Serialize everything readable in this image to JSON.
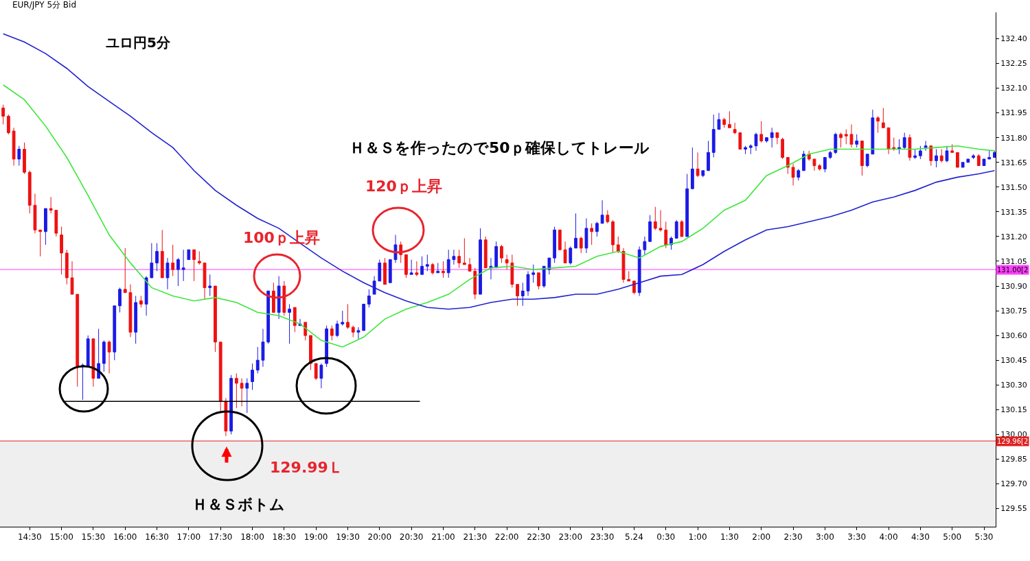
{
  "chart_data": {
    "type": "candlestick",
    "title": "ユロ円5分",
    "subtitle": "EUR/JPY 5分 Bid",
    "xlim": [
      "--05-23T14:02",
      "--05-24T05:41"
    ],
    "xticks": [
      {
        "value": "--05-23T14:30",
        "label": "14:30"
      },
      {
        "value": "--05-23T15:00",
        "label": "15:00"
      },
      {
        "value": "--05-23T15:30",
        "label": "15:30"
      },
      {
        "value": "--05-23T16:00",
        "label": "16:00"
      },
      {
        "value": "--05-23T16:30",
        "label": "16:30"
      },
      {
        "value": "--05-23T17:00",
        "label": "17:00"
      },
      {
        "value": "--05-23T17:30",
        "label": "17:30"
      },
      {
        "value": "--05-23T18:00",
        "label": "18:00"
      },
      {
        "value": "--05-23T18:30",
        "label": "18:30"
      },
      {
        "value": "--05-23T19:00",
        "label": "19:00"
      },
      {
        "value": "--05-23T19:30",
        "label": "19:30"
      },
      {
        "value": "--05-23T20:00",
        "label": "20:00"
      },
      {
        "value": "--05-23T20:30",
        "label": "20:30"
      },
      {
        "value": "--05-23T21:00",
        "label": "21:00"
      },
      {
        "value": "--05-23T21:30",
        "label": "21:30"
      },
      {
        "value": "--05-23T22:00",
        "label": "22:00"
      },
      {
        "value": "--05-23T22:30",
        "label": "22:30"
      },
      {
        "value": "--05-23T23:00",
        "label": "23:00"
      },
      {
        "value": "--05-23T23:30",
        "label": "23:30"
      },
      {
        "value": "--05-24T00:00",
        "label": "5.24"
      },
      {
        "value": "--05-24T00:30",
        "label": "0:30"
      },
      {
        "value": "--05-24T01:00",
        "label": "1:00"
      },
      {
        "value": "--05-24T01:30",
        "label": "1:30"
      },
      {
        "value": "--05-24T02:00",
        "label": "2:00"
      },
      {
        "value": "--05-24T02:30",
        "label": "2:30"
      },
      {
        "value": "--05-24T03:00",
        "label": "3:00"
      },
      {
        "value": "--05-24T03:30",
        "label": "3:30"
      },
      {
        "value": "--05-24T04:00",
        "label": "4:00"
      },
      {
        "value": "--05-24T04:30",
        "label": "4:30"
      },
      {
        "value": "--05-24T05:00",
        "label": "5:00"
      },
      {
        "value": "--05-24T05:30",
        "label": "5:30"
      }
    ],
    "ylim": [
      129.44,
      132.56
    ],
    "yticks": [
      {
        "value": 129.55,
        "label": "129.55"
      },
      {
        "value": 129.7,
        "label": "129.70"
      },
      {
        "value": 129.85,
        "label": "129.85"
      },
      {
        "value": 130.0,
        "label": "130.00"
      },
      {
        "value": 130.15,
        "label": "130.15"
      },
      {
        "value": 130.3,
        "label": "130.30"
      },
      {
        "value": 130.45,
        "label": "130.45"
      },
      {
        "value": 130.6,
        "label": "130.60"
      },
      {
        "value": 130.75,
        "label": "130.75"
      },
      {
        "value": 130.9,
        "label": "130.90"
      },
      {
        "value": 131.05,
        "label": "131.05"
      },
      {
        "value": 131.2,
        "label": "131.20"
      },
      {
        "value": 131.35,
        "label": "131.35"
      },
      {
        "value": 131.5,
        "label": "131.50"
      },
      {
        "value": 131.65,
        "label": "131.65"
      },
      {
        "value": 131.8,
        "label": "131.80"
      },
      {
        "value": 131.95,
        "label": "131.95"
      },
      {
        "value": 132.1,
        "label": "132.10"
      },
      {
        "value": 132.25,
        "label": "132.25"
      },
      {
        "value": 132.4,
        "label": "132.40"
      }
    ],
    "series": [
      {
        "type": "line",
        "color": "#3ce63c",
        "x": [
          "--05-23T14:05",
          "--05-23T14:25",
          "--05-23T14:45",
          "--05-23T15:05",
          "--05-23T15:25",
          "--05-23T15:45",
          "--05-23T16:05",
          "--05-23T16:25",
          "--05-23T16:45",
          "--05-23T17:05",
          "--05-23T17:25",
          "--05-23T17:45",
          "--05-23T18:05",
          "--05-23T18:25",
          "--05-23T18:45",
          "--05-23T19:05",
          "--05-23T19:25",
          "--05-23T19:45",
          "--05-23T20:05",
          "--05-23T20:25",
          "--05-23T20:45",
          "--05-23T21:05",
          "--05-23T21:25",
          "--05-23T21:45",
          "--05-23T22:05",
          "--05-23T22:25",
          "--05-23T22:45",
          "--05-23T23:05",
          "--05-23T23:25",
          "--05-23T23:45",
          "--05-24T00:05",
          "--05-24T00:25",
          "--05-24T00:45",
          "--05-24T01:05",
          "--05-24T01:25",
          "--05-24T01:45",
          "--05-24T02:05",
          "--05-24T02:25",
          "--05-24T02:45",
          "--05-24T03:05",
          "--05-24T03:25",
          "--05-24T03:45",
          "--05-24T04:05",
          "--05-24T04:25",
          "--05-24T04:45",
          "--05-24T05:05",
          "--05-24T05:25",
          "--05-24T05:40"
        ],
        "values": [
          132.12,
          132.03,
          131.87,
          131.68,
          131.45,
          131.21,
          131.04,
          130.89,
          130.84,
          130.81,
          130.83,
          130.8,
          130.74,
          130.72,
          130.67,
          130.57,
          130.53,
          130.59,
          130.7,
          130.76,
          130.8,
          130.85,
          130.94,
          131.01,
          131.02,
          131.0,
          131.01,
          131.02,
          131.08,
          131.11,
          131.07,
          131.14,
          131.17,
          131.25,
          131.36,
          131.42,
          131.57,
          131.63,
          131.7,
          131.73,
          131.73,
          131.73,
          131.73,
          131.73,
          131.74,
          131.75,
          131.73,
          131.72
        ]
      },
      {
        "type": "line",
        "color": "#2020d0",
        "x": [
          "--05-23T14:05",
          "--05-23T14:25",
          "--05-23T14:45",
          "--05-23T15:05",
          "--05-23T15:25",
          "--05-23T15:45",
          "--05-23T16:05",
          "--05-23T16:25",
          "--05-23T16:45",
          "--05-23T17:05",
          "--05-23T17:25",
          "--05-23T17:45",
          "--05-23T18:05",
          "--05-23T18:25",
          "--05-23T18:45",
          "--05-23T19:05",
          "--05-23T19:25",
          "--05-23T19:45",
          "--05-23T20:05",
          "--05-23T20:25",
          "--05-23T20:45",
          "--05-23T21:05",
          "--05-23T21:25",
          "--05-23T21:45",
          "--05-23T22:05",
          "--05-23T22:25",
          "--05-23T22:45",
          "--05-23T23:05",
          "--05-23T23:25",
          "--05-23T23:45",
          "--05-24T00:05",
          "--05-24T00:25",
          "--05-24T00:45",
          "--05-24T01:05",
          "--05-24T01:25",
          "--05-24T01:45",
          "--05-24T02:05",
          "--05-24T02:25",
          "--05-24T02:45",
          "--05-24T03:05",
          "--05-24T03:25",
          "--05-24T03:45",
          "--05-24T04:05",
          "--05-24T04:25",
          "--05-24T04:45",
          "--05-24T05:05",
          "--05-24T05:25",
          "--05-24T05:40"
        ],
        "values": [
          132.43,
          132.38,
          132.31,
          132.22,
          132.11,
          132.02,
          131.93,
          131.83,
          131.74,
          131.6,
          131.48,
          131.39,
          131.31,
          131.25,
          131.16,
          131.07,
          130.99,
          130.92,
          130.86,
          130.81,
          130.77,
          130.76,
          130.77,
          130.8,
          130.82,
          130.82,
          130.83,
          130.85,
          130.85,
          130.88,
          130.92,
          130.96,
          130.97,
          131.03,
          131.11,
          131.18,
          131.24,
          131.26,
          131.29,
          131.32,
          131.36,
          131.41,
          131.44,
          131.48,
          131.53,
          131.56,
          131.58,
          131.6
        ]
      },
      {
        "type": "line",
        "color": "#000000",
        "x": [
          "--05-23T15:02",
          "--05-23T20:38"
        ],
        "values": [
          130.2,
          130.2
        ]
      },
      {
        "color": "#1a1ae6",
        "x": [
          "--05-23T14:20",
          "--05-23T14:45",
          "--05-23T15:20",
          "--05-23T15:25",
          "--05-23T15:35",
          "--05-23T15:40",
          "--05-23T15:50",
          "--05-23T15:55",
          "--05-23T16:10",
          "--05-23T16:20",
          "--05-23T16:25",
          "--05-23T16:30",
          "--05-23T16:40",
          "--05-23T16:50",
          "--05-23T16:55",
          "--05-23T17:00",
          "--05-23T17:20",
          "--05-23T17:40",
          "--05-23T17:55",
          "--05-23T18:00",
          "--05-23T18:05",
          "--05-23T18:10",
          "--05-23T18:15",
          "--05-23T18:25",
          "--05-23T18:35",
          "--05-23T18:45",
          "--05-23T19:05",
          "--05-23T19:10",
          "--05-23T19:20",
          "--05-23T19:25",
          "--05-23T19:40",
          "--05-23T19:45",
          "--05-23T19:50",
          "--05-23T19:55",
          "--05-23T20:00",
          "--05-23T20:10",
          "--05-23T20:15",
          "--05-23T20:30",
          "--05-23T20:40",
          "--05-23T20:45",
          "--05-23T20:55",
          "--05-23T21:05",
          "--05-23T21:10",
          "--05-23T21:35",
          "--05-23T21:45",
          "--05-23T21:50",
          "--05-23T22:15",
          "--05-23T22:20",
          "--05-23T22:25",
          "--05-23T22:35",
          "--05-23T22:40",
          "--05-23T22:45",
          "--05-23T23:00",
          "--05-23T23:05",
          "--05-23T23:15",
          "--05-23T23:25",
          "--05-23T23:30",
          "--05-24T00:05",
          "--05-24T00:10",
          "--05-24T00:15",
          "--05-24T00:35",
          "--05-24T00:40",
          "--05-24T00:50",
          "--05-24T00:55",
          "--05-24T01:05",
          "--05-24T01:10",
          "--05-24T01:15",
          "--05-24T01:20",
          "--05-24T01:45",
          "--05-24T01:50",
          "--05-24T01:55",
          "--05-24T02:05",
          "--05-24T02:10",
          "--05-24T02:35",
          "--05-24T02:40",
          "--05-24T03:00",
          "--05-24T03:05",
          "--05-24T03:10",
          "--05-24T03:30",
          "--05-24T03:40",
          "--05-24T03:45",
          "--05-24T04:10",
          "--05-24T04:15",
          "--05-24T04:25",
          "--05-24T04:30",
          "--05-24T04:35",
          "--05-24T04:45",
          "--05-24T04:55",
          "--05-24T05:10",
          "--05-24T05:15",
          "--05-24T05:20",
          "--05-24T05:30",
          "--05-24T05:35",
          "--05-24T05:40"
        ],
        "ohlc": [
          [
            131.67,
            131.75,
            131.63,
            131.73
          ],
          [
            131.23,
            131.37,
            131.15,
            131.37
          ],
          [
            130.41,
            130.43,
            130.21,
            130.42
          ],
          [
            130.41,
            130.6,
            130.41,
            130.58
          ],
          [
            130.34,
            130.64,
            130.34,
            130.43
          ],
          [
            130.43,
            130.57,
            130.38,
            130.56
          ],
          [
            130.5,
            130.78,
            130.45,
            130.78
          ],
          [
            130.78,
            130.89,
            130.74,
            130.88
          ],
          [
            130.62,
            130.84,
            130.55,
            130.8
          ],
          [
            130.79,
            130.96,
            130.72,
            130.95
          ],
          [
            130.95,
            131.16,
            130.95,
            131.04
          ],
          [
            131.04,
            131.16,
            130.99,
            131.11
          ],
          [
            130.95,
            131.07,
            130.88,
            131.04
          ],
          [
            131.0,
            131.07,
            130.9,
            131.06
          ],
          [
            131.0,
            131.12,
            130.93,
            131.01
          ],
          [
            131.06,
            131.12,
            131.06,
            131.12
          ],
          [
            130.89,
            130.97,
            130.84,
            130.9
          ],
          [
            130.02,
            130.36,
            130.0,
            130.34
          ],
          [
            130.28,
            130.34,
            130.13,
            130.31
          ],
          [
            130.32,
            130.43,
            130.27,
            130.39
          ],
          [
            130.39,
            130.53,
            130.37,
            130.45
          ],
          [
            130.45,
            130.64,
            130.41,
            130.56
          ],
          [
            130.56,
            130.87,
            130.55,
            130.87
          ],
          [
            130.74,
            130.96,
            130.7,
            130.9
          ],
          [
            130.74,
            130.79,
            130.55,
            130.76
          ],
          [
            130.66,
            130.7,
            130.66,
            130.67
          ],
          [
            130.34,
            130.43,
            130.28,
            130.42
          ],
          [
            130.43,
            130.66,
            130.41,
            130.64
          ],
          [
            130.6,
            130.69,
            130.59,
            130.67
          ],
          [
            130.67,
            130.75,
            130.66,
            130.68
          ],
          [
            130.62,
            130.65,
            130.58,
            130.63
          ],
          [
            130.63,
            130.79,
            130.63,
            130.79
          ],
          [
            130.79,
            130.88,
            130.77,
            130.84
          ],
          [
            130.85,
            130.96,
            130.85,
            130.93
          ],
          [
            130.93,
            131.06,
            130.93,
            131.04
          ],
          [
            130.92,
            131.06,
            130.92,
            131.06
          ],
          [
            131.06,
            131.21,
            131.04,
            131.15
          ],
          [
            130.97,
            131.06,
            130.97,
            130.98
          ],
          [
            130.97,
            131.08,
            130.97,
            131.02
          ],
          [
            131.02,
            131.09,
            130.99,
            131.03
          ],
          [
            130.98,
            131.04,
            130.98,
            130.99
          ],
          [
            130.98,
            131.12,
            130.95,
            131.06
          ],
          [
            131.06,
            131.12,
            131.03,
            131.08
          ],
          [
            130.85,
            131.25,
            130.85,
            131.18
          ],
          [
            131.01,
            131.07,
            130.94,
            131.02
          ],
          [
            131.01,
            131.17,
            131.01,
            131.14
          ],
          [
            130.84,
            130.92,
            130.78,
            130.87
          ],
          [
            130.87,
            130.99,
            130.84,
            130.97
          ],
          [
            130.97,
            131.03,
            130.92,
            130.98
          ],
          [
            130.9,
            131.02,
            130.89,
            131.02
          ],
          [
            131.0,
            131.07,
            130.97,
            131.07
          ],
          [
            131.07,
            131.26,
            131.04,
            131.24
          ],
          [
            131.04,
            131.14,
            131.03,
            131.13
          ],
          [
            131.13,
            131.34,
            131.13,
            131.19
          ],
          [
            131.13,
            131.31,
            131.1,
            131.25
          ],
          [
            131.23,
            131.29,
            131.2,
            131.28
          ],
          [
            131.28,
            131.42,
            131.28,
            131.33
          ],
          [
            130.86,
            131.14,
            130.84,
            131.12
          ],
          [
            131.12,
            131.2,
            131.09,
            131.17
          ],
          [
            131.17,
            131.33,
            131.17,
            131.29
          ],
          [
            131.15,
            131.2,
            131.12,
            131.19
          ],
          [
            131.19,
            131.3,
            131.19,
            131.29
          ],
          [
            131.2,
            131.58,
            131.2,
            131.49
          ],
          [
            131.49,
            131.74,
            131.49,
            131.61
          ],
          [
            131.57,
            131.6,
            131.56,
            131.6
          ],
          [
            131.6,
            131.78,
            131.6,
            131.71
          ],
          [
            131.71,
            131.94,
            131.68,
            131.85
          ],
          [
            131.85,
            131.95,
            131.85,
            131.91
          ],
          [
            131.73,
            131.75,
            131.7,
            131.74
          ],
          [
            131.74,
            131.76,
            131.7,
            131.75
          ],
          [
            131.75,
            131.83,
            131.72,
            131.82
          ],
          [
            131.78,
            131.8,
            131.77,
            131.8
          ],
          [
            131.8,
            131.86,
            131.74,
            131.83
          ],
          [
            131.56,
            131.61,
            131.54,
            131.6
          ],
          [
            131.6,
            131.72,
            131.6,
            131.7
          ],
          [
            131.61,
            131.68,
            131.59,
            131.68
          ],
          [
            131.68,
            131.72,
            131.67,
            131.71
          ],
          [
            131.71,
            131.83,
            131.7,
            131.82
          ],
          [
            131.76,
            131.82,
            131.74,
            131.78
          ],
          [
            131.63,
            131.7,
            131.62,
            131.7
          ],
          [
            131.7,
            131.97,
            131.7,
            131.92
          ],
          [
            131.73,
            131.79,
            131.7,
            131.74
          ],
          [
            131.74,
            131.83,
            131.73,
            131.8
          ],
          [
            131.68,
            131.73,
            131.67,
            131.69
          ],
          [
            131.69,
            131.75,
            131.67,
            131.72
          ],
          [
            131.74,
            131.78,
            131.72,
            131.75
          ],
          [
            131.66,
            131.73,
            131.62,
            131.69
          ],
          [
            131.66,
            131.75,
            131.65,
            131.72
          ],
          [
            131.62,
            131.65,
            131.62,
            131.65
          ],
          [
            131.65,
            131.67,
            131.65,
            131.67
          ],
          [
            131.68,
            131.7,
            131.67,
            131.69
          ],
          [
            131.63,
            131.67,
            131.63,
            131.67
          ],
          [
            131.67,
            131.72,
            131.67,
            131.68
          ],
          [
            131.68,
            131.72,
            131.68,
            131.71
          ]
        ]
      },
      {
        "color": "#ee1111",
        "x": [
          "--05-23T14:05",
          "--05-23T14:10",
          "--05-23T14:15",
          "--05-23T14:25",
          "--05-23T14:30",
          "--05-23T14:35",
          "--05-23T14:40",
          "--05-23T14:50",
          "--05-23T14:55",
          "--05-23T15:00",
          "--05-23T15:05",
          "--05-23T15:10",
          "--05-23T15:15",
          "--05-23T15:30",
          "--05-23T15:45",
          "--05-23T16:00",
          "--05-23T16:05",
          "--05-23T16:15",
          "--05-23T16:35",
          "--05-23T16:45",
          "--05-23T17:05",
          "--05-23T17:10",
          "--05-23T17:15",
          "--05-23T17:25",
          "--05-23T17:30",
          "--05-23T17:35",
          "--05-23T17:45",
          "--05-23T17:50",
          "--05-23T18:20",
          "--05-23T18:30",
          "--05-23T18:40",
          "--05-23T18:50",
          "--05-23T18:55",
          "--05-23T19:00",
          "--05-23T19:15",
          "--05-23T19:30",
          "--05-23T19:35",
          "--05-23T20:05",
          "--05-23T20:20",
          "--05-23T20:25",
          "--05-23T20:35",
          "--05-23T20:50",
          "--05-23T21:00",
          "--05-23T21:15",
          "--05-23T21:20",
          "--05-23T21:25",
          "--05-23T21:30",
          "--05-23T21:40",
          "--05-23T21:55",
          "--05-23T22:00",
          "--05-23T22:05",
          "--05-23T22:10",
          "--05-23T22:30",
          "--05-23T22:50",
          "--05-23T22:55",
          "--05-23T23:10",
          "--05-23T23:20",
          "--05-23T23:35",
          "--05-23T23:40",
          "--05-23T23:45",
          "--05-23T23:50",
          "--05-23T23:55",
          "--05-24T00:00",
          "--05-24T00:20",
          "--05-24T00:25",
          "--05-24T00:30",
          "--05-24T00:45",
          "--05-24T01:00",
          "--05-24T01:25",
          "--05-24T01:30",
          "--05-24T01:35",
          "--05-24T01:40",
          "--05-24T02:00",
          "--05-24T02:15",
          "--05-24T02:20",
          "--05-24T02:25",
          "--05-24T02:30",
          "--05-24T02:45",
          "--05-24T02:50",
          "--05-24T02:55",
          "--05-24T03:15",
          "--05-24T03:20",
          "--05-24T03:25",
          "--05-24T03:35",
          "--05-24T03:50",
          "--05-24T03:55",
          "--05-24T04:00",
          "--05-24T04:05",
          "--05-24T04:20",
          "--05-24T04:40",
          "--05-24T04:50",
          "--05-24T05:00",
          "--05-24T05:05",
          "--05-24T05:25"
        ],
        "ohlc": [
          [
            131.98,
            132.0,
            131.88,
            131.93
          ],
          [
            131.93,
            131.94,
            131.82,
            131.83
          ],
          [
            131.84,
            131.86,
            131.63,
            131.67
          ],
          [
            131.73,
            131.77,
            131.58,
            131.59
          ],
          [
            131.59,
            131.6,
            131.34,
            131.39
          ],
          [
            131.39,
            131.46,
            131.22,
            131.24
          ],
          [
            131.24,
            131.24,
            131.08,
            131.23
          ],
          [
            131.37,
            131.44,
            131.34,
            131.36
          ],
          [
            131.36,
            131.36,
            131.2,
            131.22
          ],
          [
            131.21,
            131.26,
            130.97,
            131.1
          ],
          [
            131.1,
            131.12,
            130.91,
            130.95
          ],
          [
            130.95,
            131.05,
            130.85,
            130.85
          ],
          [
            130.85,
            130.85,
            130.29,
            130.41
          ],
          [
            130.58,
            130.58,
            130.29,
            130.34
          ],
          [
            130.56,
            130.57,
            130.37,
            130.5
          ],
          [
            130.88,
            131.13,
            130.86,
            130.86
          ],
          [
            130.86,
            130.91,
            130.59,
            130.62
          ],
          [
            130.81,
            130.84,
            130.77,
            130.79
          ],
          [
            131.11,
            131.24,
            130.95,
            130.95
          ],
          [
            131.04,
            131.15,
            130.96,
            131.0
          ],
          [
            131.12,
            131.12,
            130.93,
            131.06
          ],
          [
            131.05,
            131.11,
            131.03,
            131.04
          ],
          [
            131.04,
            131.04,
            130.82,
            130.89
          ],
          [
            130.9,
            130.9,
            130.5,
            130.56
          ],
          [
            130.56,
            130.56,
            130.14,
            130.2
          ],
          [
            130.2,
            130.22,
            129.99,
            130.02
          ],
          [
            130.34,
            130.37,
            130.16,
            130.31
          ],
          [
            130.31,
            130.34,
            130.17,
            130.28
          ],
          [
            130.87,
            130.92,
            130.74,
            130.74
          ],
          [
            130.9,
            130.93,
            130.72,
            130.74
          ],
          [
            130.77,
            130.77,
            130.62,
            130.66
          ],
          [
            130.68,
            130.68,
            130.57,
            130.6
          ],
          [
            130.6,
            130.6,
            130.39,
            130.43
          ],
          [
            130.43,
            130.43,
            130.33,
            130.34
          ],
          [
            130.64,
            130.66,
            130.57,
            130.6
          ],
          [
            130.68,
            130.79,
            130.64,
            130.65
          ],
          [
            130.65,
            130.66,
            130.59,
            130.62
          ],
          [
            131.04,
            131.07,
            130.91,
            130.91
          ],
          [
            131.15,
            131.17,
            131.04,
            131.09
          ],
          [
            131.09,
            131.09,
            130.95,
            130.97
          ],
          [
            130.98,
            131.05,
            130.96,
            130.97
          ],
          [
            131.03,
            131.04,
            130.97,
            130.98
          ],
          [
            130.99,
            131.05,
            130.95,
            130.98
          ],
          [
            131.08,
            131.12,
            131.01,
            131.04
          ],
          [
            131.04,
            131.19,
            131.03,
            131.03
          ],
          [
            131.03,
            131.07,
            130.99,
            130.99
          ],
          [
            130.99,
            131.01,
            130.82,
            130.85
          ],
          [
            131.18,
            131.2,
            131.01,
            131.01
          ],
          [
            131.14,
            131.15,
            131.04,
            131.07
          ],
          [
            131.06,
            131.09,
            131.0,
            131.04
          ],
          [
            131.04,
            131.09,
            130.89,
            130.91
          ],
          [
            130.91,
            130.91,
            130.78,
            130.84
          ],
          [
            130.98,
            130.98,
            130.88,
            130.9
          ],
          [
            131.24,
            131.24,
            131.12,
            131.12
          ],
          [
            131.12,
            131.17,
            131.04,
            131.04
          ],
          [
            131.19,
            131.2,
            131.1,
            131.13
          ],
          [
            131.25,
            131.28,
            131.15,
            131.23
          ],
          [
            131.33,
            131.36,
            131.28,
            131.29
          ],
          [
            131.29,
            131.3,
            131.1,
            131.15
          ],
          [
            131.15,
            131.2,
            131.1,
            131.11
          ],
          [
            131.11,
            131.13,
            130.92,
            130.94
          ],
          [
            130.94,
            130.99,
            130.93,
            130.93
          ],
          [
            130.93,
            130.93,
            130.85,
            130.86
          ],
          [
            131.29,
            131.38,
            131.24,
            131.25
          ],
          [
            131.25,
            131.36,
            131.23,
            131.24
          ],
          [
            131.24,
            131.29,
            131.13,
            131.15
          ],
          [
            131.29,
            131.3,
            131.2,
            131.2
          ],
          [
            131.61,
            131.71,
            131.56,
            131.57
          ],
          [
            131.91,
            131.92,
            131.86,
            131.88
          ],
          [
            131.88,
            131.96,
            131.86,
            131.86
          ],
          [
            131.85,
            131.89,
            131.82,
            131.83
          ],
          [
            131.83,
            131.83,
            131.73,
            131.73
          ],
          [
            131.82,
            131.9,
            131.77,
            131.78
          ],
          [
            131.83,
            131.83,
            131.76,
            131.8
          ],
          [
            131.79,
            131.8,
            131.67,
            131.68
          ],
          [
            131.68,
            131.68,
            131.58,
            131.62
          ],
          [
            131.62,
            131.64,
            131.51,
            131.56
          ],
          [
            131.7,
            131.72,
            131.66,
            131.67
          ],
          [
            131.67,
            131.67,
            131.6,
            131.63
          ],
          [
            131.63,
            131.64,
            131.6,
            131.61
          ],
          [
            131.82,
            131.83,
            131.74,
            131.8
          ],
          [
            131.82,
            131.85,
            131.76,
            131.81
          ],
          [
            131.82,
            131.88,
            131.74,
            131.76
          ],
          [
            131.78,
            131.78,
            131.57,
            131.63
          ],
          [
            131.92,
            131.93,
            131.83,
            131.9
          ],
          [
            131.89,
            131.98,
            131.86,
            131.86
          ],
          [
            131.86,
            131.86,
            131.7,
            131.73
          ],
          [
            131.74,
            131.8,
            131.72,
            131.73
          ],
          [
            131.8,
            131.82,
            131.66,
            131.68
          ],
          [
            131.75,
            131.75,
            131.63,
            131.66
          ],
          [
            131.69,
            131.73,
            131.65,
            131.66
          ],
          [
            131.72,
            131.76,
            131.71,
            131.71
          ],
          [
            131.71,
            131.71,
            131.62,
            131.62
          ],
          [
            131.69,
            131.7,
            131.63,
            131.63
          ]
        ]
      }
    ],
    "ref_lines": [
      {
        "axis": "y",
        "value": 131.0,
        "label": "131.00[2",
        "color": "#ff40ff"
      },
      {
        "axis": "y",
        "value": 129.96,
        "label": "129.96[2",
        "color": "#e02020"
      }
    ],
    "bands": [
      {
        "axis": "y",
        "from": 129.44,
        "to": 129.96,
        "color": "#efefef"
      }
    ],
    "annotations": [
      "Ｈ＆Ｓを作ったので50ｐ確保してトレール",
      "120ｐ上昇",
      "100ｐ上昇",
      "129.99Ｌ",
      "Ｈ＆Ｓボトム"
    ]
  }
}
